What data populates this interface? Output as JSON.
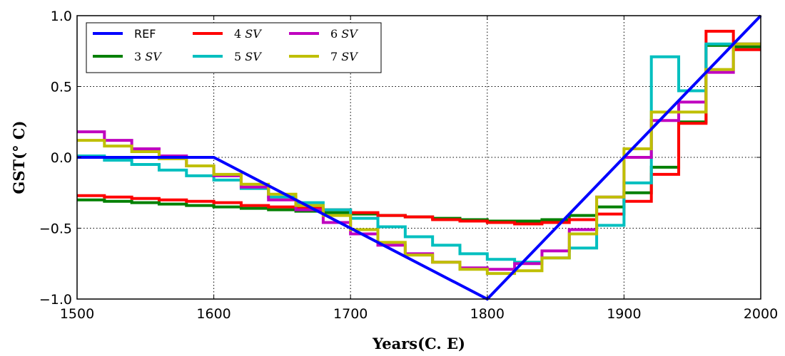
{
  "chart_data": {
    "type": "line",
    "title": "",
    "xlabel": "Years(C. E)",
    "ylabel": "GST(° C)",
    "xlim": [
      1500,
      2000
    ],
    "ylim": [
      -1.0,
      1.0
    ],
    "xticks": [
      1500,
      1600,
      1700,
      1800,
      1900,
      2000
    ],
    "xtick_labels": [
      "1500",
      "1600",
      "1700",
      "1800",
      "1900",
      "2000"
    ],
    "yticks": [
      -1.0,
      -0.5,
      0.0,
      0.5,
      1.0
    ],
    "ytick_labels": [
      "−1.0",
      "−0.5",
      "0.0",
      "0.5",
      "1.0"
    ],
    "grid": true,
    "legend_position": "top-left",
    "series": [
      {
        "name": "REF",
        "color": "#0000ff",
        "steps": false,
        "x": [
          1500,
          1600,
          1800,
          2000
        ],
        "y": [
          0.0,
          0.0,
          -1.0,
          1.0
        ]
      },
      {
        "name": "3 SV",
        "color": "#008000",
        "steps": true,
        "edges": [
          1500,
          1520,
          1540,
          1560,
          1580,
          1600,
          1620,
          1640,
          1660,
          1680,
          1700,
          1720,
          1740,
          1760,
          1780,
          1800,
          1820,
          1840,
          1860,
          1880,
          1900,
          1920,
          1940,
          1960,
          1980,
          2000
        ],
        "values": [
          -0.3,
          -0.31,
          -0.32,
          -0.33,
          -0.34,
          -0.35,
          -0.36,
          -0.37,
          -0.38,
          -0.39,
          -0.4,
          -0.41,
          -0.42,
          -0.43,
          -0.44,
          -0.45,
          -0.45,
          -0.44,
          -0.41,
          -0.35,
          -0.25,
          -0.07,
          0.25,
          0.79,
          0.78
        ]
      },
      {
        "name": "4 SV",
        "color": "#ff0000",
        "steps": true,
        "edges": [
          1500,
          1520,
          1540,
          1560,
          1580,
          1600,
          1620,
          1640,
          1660,
          1680,
          1700,
          1720,
          1740,
          1760,
          1780,
          1800,
          1820,
          1840,
          1860,
          1880,
          1900,
          1920,
          1940,
          1960,
          1980,
          2000
        ],
        "values": [
          -0.27,
          -0.28,
          -0.29,
          -0.3,
          -0.31,
          -0.32,
          -0.34,
          -0.35,
          -0.36,
          -0.37,
          -0.39,
          -0.41,
          -0.42,
          -0.44,
          -0.45,
          -0.46,
          -0.47,
          -0.46,
          -0.44,
          -0.4,
          -0.31,
          -0.12,
          0.24,
          0.89,
          0.76
        ]
      },
      {
        "name": "5 SV",
        "color": "#00bfbf",
        "steps": true,
        "edges": [
          1500,
          1520,
          1540,
          1560,
          1580,
          1600,
          1620,
          1640,
          1660,
          1680,
          1700,
          1720,
          1740,
          1760,
          1780,
          1800,
          1820,
          1840,
          1860,
          1880,
          1900,
          1920,
          1940,
          1960,
          1980,
          2000
        ],
        "values": [
          0.01,
          -0.02,
          -0.05,
          -0.09,
          -0.13,
          -0.16,
          -0.22,
          -0.28,
          -0.32,
          -0.37,
          -0.43,
          -0.49,
          -0.56,
          -0.62,
          -0.68,
          -0.72,
          -0.74,
          -0.71,
          -0.64,
          -0.48,
          -0.18,
          0.71,
          0.47,
          0.8,
          0.8
        ]
      },
      {
        "name": "6 SV",
        "color": "#bf00bf",
        "steps": true,
        "edges": [
          1500,
          1520,
          1540,
          1560,
          1580,
          1600,
          1620,
          1640,
          1660,
          1680,
          1700,
          1720,
          1740,
          1760,
          1780,
          1800,
          1820,
          1840,
          1860,
          1880,
          1900,
          1920,
          1940,
          1960,
          1980,
          2000
        ],
        "values": [
          0.18,
          0.12,
          0.06,
          0.01,
          -0.06,
          -0.13,
          -0.21,
          -0.3,
          -0.37,
          -0.46,
          -0.54,
          -0.62,
          -0.68,
          -0.74,
          -0.78,
          -0.79,
          -0.75,
          -0.66,
          -0.51,
          -0.28,
          0.0,
          0.26,
          0.39,
          0.6,
          0.8
        ]
      },
      {
        "name": "7 SV",
        "color": "#bfbf00",
        "steps": true,
        "edges": [
          1500,
          1520,
          1540,
          1560,
          1580,
          1600,
          1620,
          1640,
          1660,
          1680,
          1700,
          1720,
          1740,
          1760,
          1780,
          1800,
          1820,
          1840,
          1860,
          1880,
          1900,
          1920,
          1940,
          1960,
          1980,
          2000
        ],
        "values": [
          0.12,
          0.08,
          0.04,
          -0.01,
          -0.06,
          -0.12,
          -0.19,
          -0.26,
          -0.34,
          -0.41,
          -0.51,
          -0.6,
          -0.69,
          -0.74,
          -0.79,
          -0.82,
          -0.8,
          -0.71,
          -0.54,
          -0.28,
          0.06,
          0.32,
          0.32,
          0.62,
          0.8
        ]
      }
    ]
  },
  "legend": {
    "items": [
      {
        "series": "REF",
        "label_text": "REF",
        "number": "",
        "unit": ""
      },
      {
        "series": "3 SV",
        "label_text": "",
        "number": "3",
        "unit": "SV"
      },
      {
        "series": "4 SV",
        "label_text": "",
        "number": "4",
        "unit": "SV"
      },
      {
        "series": "5 SV",
        "label_text": "",
        "number": "5",
        "unit": "SV"
      },
      {
        "series": "6 SV",
        "label_text": "",
        "number": "6",
        "unit": "SV"
      },
      {
        "series": "7 SV",
        "label_text": "",
        "number": "7",
        "unit": "SV"
      }
    ]
  }
}
